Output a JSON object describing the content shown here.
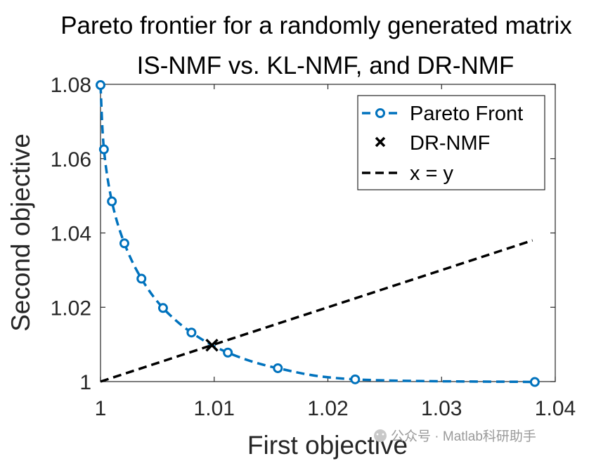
{
  "chart_data": {
    "type": "line",
    "title": "Pareto frontier for a randomly generated matrix",
    "subtitle": "IS-NMF vs. KL-NMF, and DR-NMF",
    "xlabel": "First objective",
    "ylabel": "Second objective",
    "xlim": [
      1.0,
      1.04
    ],
    "ylim": [
      1.0,
      1.08
    ],
    "xticks": [
      1.0,
      1.01,
      1.02,
      1.03,
      1.04
    ],
    "xtick_labels": [
      "1",
      "1.01",
      "1.02",
      "1.03",
      "1.04"
    ],
    "yticks": [
      1.0,
      1.02,
      1.04,
      1.06,
      1.08
    ],
    "ytick_labels": [
      "1",
      "1.02",
      "1.04",
      "1.06",
      "1.08"
    ],
    "grid": false,
    "legend_position": "top-right",
    "series": [
      {
        "name": "Pareto Front",
        "style": "dashed-circle-markers",
        "color": "#0072BD",
        "x": [
          1.0,
          1.0003,
          1.001,
          1.0021,
          1.0036,
          1.0055,
          1.008,
          1.0112,
          1.0156,
          1.0224,
          1.0382
        ],
        "y": [
          1.0798,
          1.0625,
          1.0485,
          1.0372,
          1.0277,
          1.0198,
          1.0132,
          1.0078,
          1.0036,
          1.0006,
          0.9999
        ]
      },
      {
        "name": "DR-NMF",
        "style": "x-marker",
        "color": "#000000",
        "x": [
          1.0098
        ],
        "y": [
          1.0098
        ]
      },
      {
        "name": "x = y",
        "style": "dashed",
        "color": "#000000",
        "x": [
          1.0,
          1.038
        ],
        "y": [
          1.0,
          1.038
        ]
      }
    ]
  },
  "watermark": {
    "text": "公众号 · Matlab科研助手"
  }
}
